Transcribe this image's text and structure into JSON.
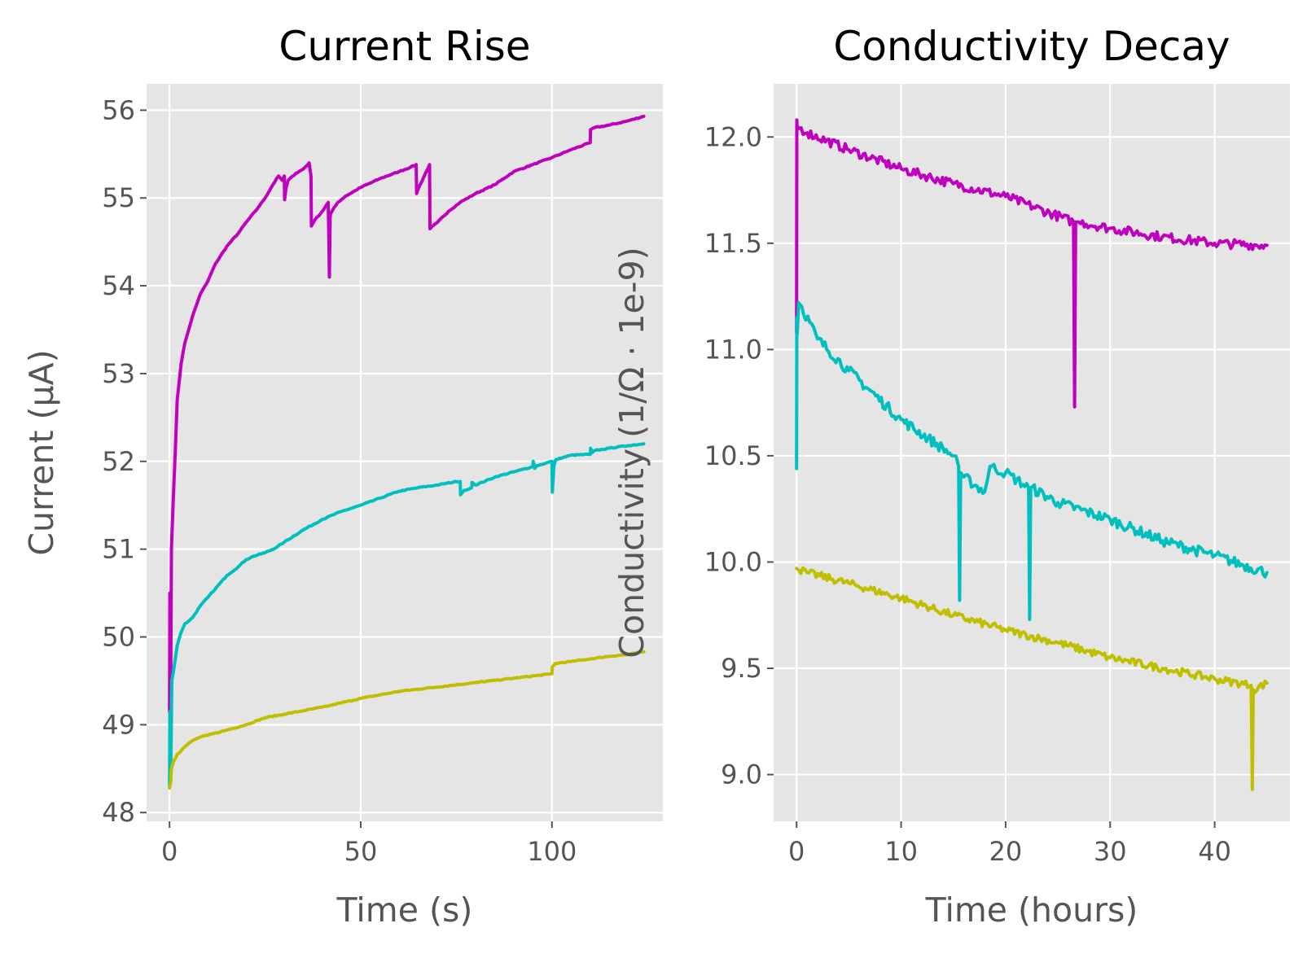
{
  "chart_data": [
    {
      "type": "line",
      "title": "Current Rise",
      "xlabel": "Time (s)",
      "ylabel": "Current (μA)",
      "xlim": [
        -6,
        129
      ],
      "ylim": [
        47.9,
        56.3
      ],
      "xticks": [
        0,
        50,
        100
      ],
      "yticks": [
        48,
        49,
        50,
        51,
        52,
        53,
        54,
        55,
        56
      ],
      "grid": true,
      "background": "#e5e5e5",
      "series": [
        {
          "color": "#bf00bf",
          "x": [
            0,
            0.1,
            0.3,
            0.5,
            1,
            1.5,
            2,
            3,
            4,
            5,
            6,
            8,
            10,
            12,
            15,
            18,
            20,
            23,
            25,
            27,
            28.5,
            29.5,
            30,
            30.1,
            30.5,
            31,
            33,
            35,
            36.5,
            37,
            37.1,
            38,
            40,
            41.5,
            41.8,
            42,
            42.1,
            42.5,
            44,
            46,
            50,
            55,
            60,
            63,
            64.5,
            64.6,
            65,
            68,
            68.1,
            70,
            73,
            76,
            80,
            85,
            90,
            95,
            100,
            105,
            110,
            110.1,
            111,
            115,
            120,
            124
          ],
          "y": [
            49.15,
            50.5,
            49.3,
            51.0,
            51.6,
            52.1,
            52.7,
            53.1,
            53.35,
            53.5,
            53.65,
            53.9,
            54.05,
            54.25,
            54.45,
            54.6,
            54.72,
            54.88,
            55.0,
            55.15,
            55.25,
            55.2,
            55.25,
            54.98,
            55.12,
            55.2,
            55.28,
            55.33,
            55.4,
            55.25,
            54.68,
            54.75,
            54.85,
            54.95,
            54.1,
            54.78,
            54.82,
            54.85,
            54.95,
            55.02,
            55.12,
            55.22,
            55.3,
            55.35,
            55.38,
            55.05,
            55.1,
            55.38,
            54.65,
            54.72,
            54.85,
            54.95,
            55.05,
            55.15,
            55.3,
            55.38,
            55.46,
            55.55,
            55.63,
            55.78,
            55.8,
            55.83,
            55.88,
            55.93
          ]
        },
        {
          "color": "#00bfbf",
          "x": [
            0,
            0.1,
            0.3,
            0.6,
            1,
            2,
            3,
            4,
            5,
            6,
            8,
            10,
            12,
            15,
            18,
            20,
            22,
            25,
            28,
            30,
            35,
            40,
            45,
            50,
            55,
            60,
            65,
            70,
            75,
            76,
            76.1,
            77,
            78,
            79,
            79.1,
            80,
            85,
            90,
            95,
            95.1,
            95.5,
            96,
            100,
            100.1,
            100.5,
            101,
            105,
            110,
            110.1,
            110.5,
            111,
            115,
            120,
            124
          ],
          "y": [
            48.3,
            49.15,
            48.35,
            49.5,
            49.6,
            49.9,
            50.05,
            50.15,
            50.18,
            50.22,
            50.35,
            50.45,
            50.55,
            50.7,
            50.8,
            50.88,
            50.92,
            50.96,
            51.02,
            51.08,
            51.22,
            51.34,
            51.43,
            51.5,
            51.58,
            51.66,
            51.7,
            51.73,
            51.77,
            51.77,
            51.62,
            51.67,
            51.68,
            51.7,
            51.76,
            51.73,
            51.82,
            51.88,
            51.94,
            52.0,
            51.92,
            51.95,
            52.0,
            51.65,
            51.95,
            52.02,
            52.07,
            52.08,
            52.15,
            52.1,
            52.12,
            52.15,
            52.18,
            52.2
          ]
        },
        {
          "color": "#bfbf00",
          "x": [
            0,
            0.1,
            0.3,
            0.5,
            1,
            2,
            4,
            6,
            8,
            10,
            15,
            20,
            25,
            30,
            35,
            40,
            45,
            50,
            55,
            60,
            70,
            80,
            90,
            100,
            100.1,
            101,
            105,
            110,
            115,
            120,
            124
          ],
          "y": [
            48.28,
            48.3,
            48.35,
            48.5,
            48.58,
            48.66,
            48.75,
            48.82,
            48.86,
            48.88,
            48.94,
            49.0,
            49.08,
            49.12,
            49.16,
            49.2,
            49.25,
            49.3,
            49.34,
            49.38,
            49.43,
            49.48,
            49.53,
            49.58,
            49.66,
            49.7,
            49.72,
            49.75,
            49.78,
            49.8,
            49.83
          ]
        }
      ]
    },
    {
      "type": "line",
      "title": "Conductivity Decay",
      "xlabel": "Time (hours)",
      "ylabel": "Conductivity (1/Ω · 1e-9)",
      "xlim": [
        -2.2,
        47.2
      ],
      "ylim": [
        8.78,
        12.25
      ],
      "xticks": [
        0,
        10,
        20,
        30,
        40
      ],
      "yticks": [
        9.0,
        9.5,
        10.0,
        10.5,
        11.0,
        11.5,
        12.0
      ],
      "grid": true,
      "background": "#e5e5e5",
      "series": [
        {
          "color": "#bf00bf",
          "noise": 0.022,
          "x": [
            0,
            0.02,
            0.05,
            1,
            5,
            10,
            15,
            20,
            26.5,
            26.6,
            26.7,
            27,
            30,
            35,
            40,
            45
          ],
          "y": [
            11.08,
            12.08,
            12.05,
            12.02,
            11.94,
            11.85,
            11.78,
            11.72,
            11.6,
            10.73,
            11.6,
            11.6,
            11.57,
            11.53,
            11.5,
            11.49
          ]
        },
        {
          "color": "#00bfbf",
          "noise": 0.025,
          "x": [
            0,
            0.02,
            0.05,
            0.2,
            0.5,
            2,
            5,
            10,
            15,
            15.5,
            15.6,
            15.7,
            16,
            18,
            18.5,
            20,
            22.2,
            22.3,
            22.4,
            25,
            30,
            35,
            40,
            45
          ],
          "y": [
            10.44,
            11.15,
            11.07,
            11.22,
            11.2,
            11.05,
            10.9,
            10.67,
            10.5,
            10.45,
            9.82,
            10.42,
            10.4,
            10.33,
            10.45,
            10.42,
            10.35,
            9.73,
            10.35,
            10.28,
            10.2,
            10.1,
            10.03,
            9.95
          ]
        },
        {
          "color": "#bfbf00",
          "noise": 0.018,
          "x": [
            0,
            1,
            5,
            10,
            15,
            20,
            25,
            30,
            35,
            40,
            43.5,
            43.6,
            43.7,
            45
          ],
          "y": [
            9.97,
            9.95,
            9.9,
            9.83,
            9.75,
            9.68,
            9.62,
            9.55,
            9.5,
            9.45,
            9.42,
            8.93,
            9.4,
            9.43
          ]
        }
      ]
    }
  ]
}
